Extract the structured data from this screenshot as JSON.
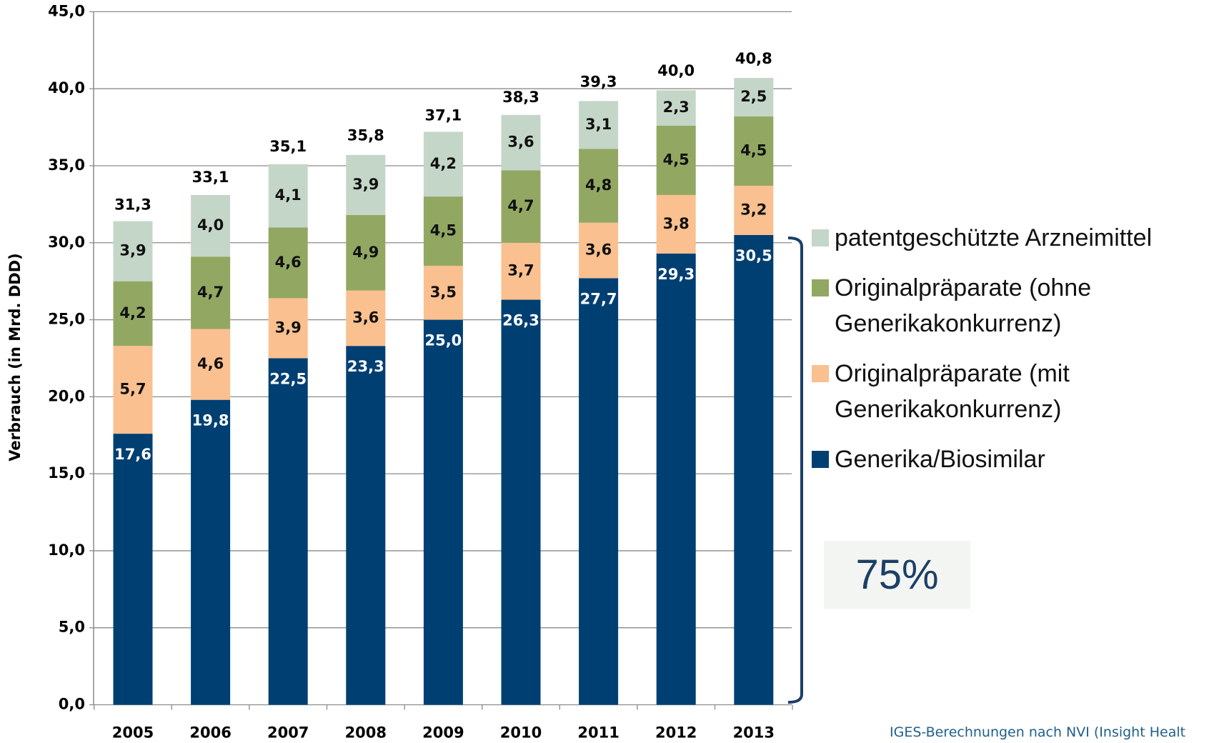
{
  "chart_data": {
    "type": "stacked_bar",
    "y_axis_label": "Verbrauch (in Mrd. DDD)",
    "categories": [
      "2005",
      "2006",
      "2007",
      "2008",
      "2009",
      "2010",
      "2011",
      "2012",
      "2013"
    ],
    "series": [
      {
        "name": "Generika/Biosimilar",
        "color": "#003f72",
        "values": [
          17.6,
          19.8,
          22.5,
          23.3,
          25.0,
          26.3,
          27.7,
          29.3,
          30.5
        ],
        "value_labels": [
          "17,6",
          "19,8",
          "22,5",
          "23,3",
          "25,0",
          "26,3",
          "27,7",
          "29,3",
          "30,5"
        ]
      },
      {
        "name": "Originalpräparate (mit Generikakonkurrenz)",
        "color": "#fac08f",
        "values": [
          5.7,
          4.6,
          3.9,
          3.6,
          3.5,
          3.7,
          3.6,
          3.8,
          3.2
        ],
        "value_labels": [
          "5,7",
          "4,6",
          "3,9",
          "3,6",
          "3,5",
          "3,7",
          "3,6",
          "3,8",
          "3,2"
        ]
      },
      {
        "name": "Originalpräparate (ohne Generikakonkurrenz)",
        "color": "#92a862",
        "values": [
          4.2,
          4.7,
          4.6,
          4.9,
          4.5,
          4.7,
          4.8,
          4.5,
          4.5
        ],
        "value_labels": [
          "4,2",
          "4,7",
          "4,6",
          "4,9",
          "4,5",
          "4,7",
          "4,8",
          "4,5",
          "4,5"
        ]
      },
      {
        "name": "patentgeschützte Arzneimittel",
        "color": "#c4d6c8",
        "values": [
          3.9,
          4.0,
          4.1,
          3.9,
          4.2,
          3.6,
          3.1,
          2.3,
          2.5
        ],
        "value_labels": [
          "3,9",
          "4,0",
          "4,1",
          "3,9",
          "4,2",
          "3,6",
          "3,1",
          "2,3",
          "2,5"
        ]
      }
    ],
    "totals": [
      31.3,
      33.1,
      35.1,
      35.8,
      37.1,
      38.3,
      39.3,
      40.0,
      40.8
    ],
    "total_labels": [
      "31,3",
      "33,1",
      "35,1",
      "35,8",
      "37,1",
      "38,3",
      "39,3",
      "40,0",
      "40,8"
    ],
    "ylim": [
      0,
      45
    ],
    "yticks": [
      {
        "value": 0,
        "label": "0,0"
      },
      {
        "value": 5,
        "label": "5,0"
      },
      {
        "value": 10,
        "label": "10,0"
      },
      {
        "value": 15,
        "label": "15,0"
      },
      {
        "value": 20,
        "label": "20,0"
      },
      {
        "value": 25,
        "label": "25,0"
      },
      {
        "value": 30,
        "label": "30,0"
      },
      {
        "value": 35,
        "label": "35,0"
      },
      {
        "value": 40,
        "label": "40,0"
      },
      {
        "value": 45,
        "label": "45,0"
      }
    ],
    "grid": true,
    "legend_position": "right",
    "annotation": "75%",
    "source": "IGES-Berechnungen nach NVI (Insight Healt"
  }
}
